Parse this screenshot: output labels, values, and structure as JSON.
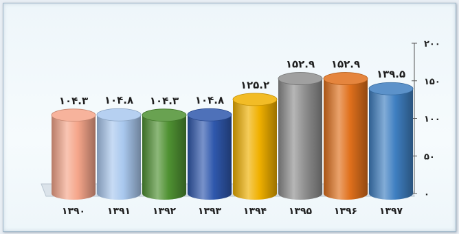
{
  "chart_data": {
    "type": "bar",
    "categories": [
      "۱۳۹۰",
      "۱۳۹۱",
      "۱۳۹۲",
      "۱۳۹۳",
      "۱۳۹۴",
      "۱۳۹۵",
      "۱۳۹۶",
      "۱۳۹۷"
    ],
    "values": [
      104.3,
      104.8,
      104.3,
      104.8,
      125.2,
      152.9,
      152.9,
      139.5
    ],
    "value_labels": [
      "۱۰۴.۳",
      "۱۰۴.۸",
      "۱۰۴.۳",
      "۱۰۴.۸",
      "۱۲۵.۲",
      "۱۵۲.۹",
      "۱۵۲.۹",
      "۱۳۹.۵"
    ],
    "bar_colors": [
      "#f5a58a",
      "#a9c8ee",
      "#4f9132",
      "#2f58ad",
      "#f0b000",
      "#8f8f8f",
      "#e0701c",
      "#3f7fc1"
    ],
    "yticks": [
      0,
      50,
      100,
      150,
      200
    ],
    "ytick_labels": [
      "۰",
      "۵۰",
      "۱۰۰",
      "۱۵۰",
      "۲۰۰"
    ],
    "ylim": [
      0,
      200
    ],
    "axis_position": "right",
    "title": "",
    "xlabel": "",
    "ylabel": "",
    "grid": false,
    "legend": "none",
    "style": "3d-cylinder"
  }
}
